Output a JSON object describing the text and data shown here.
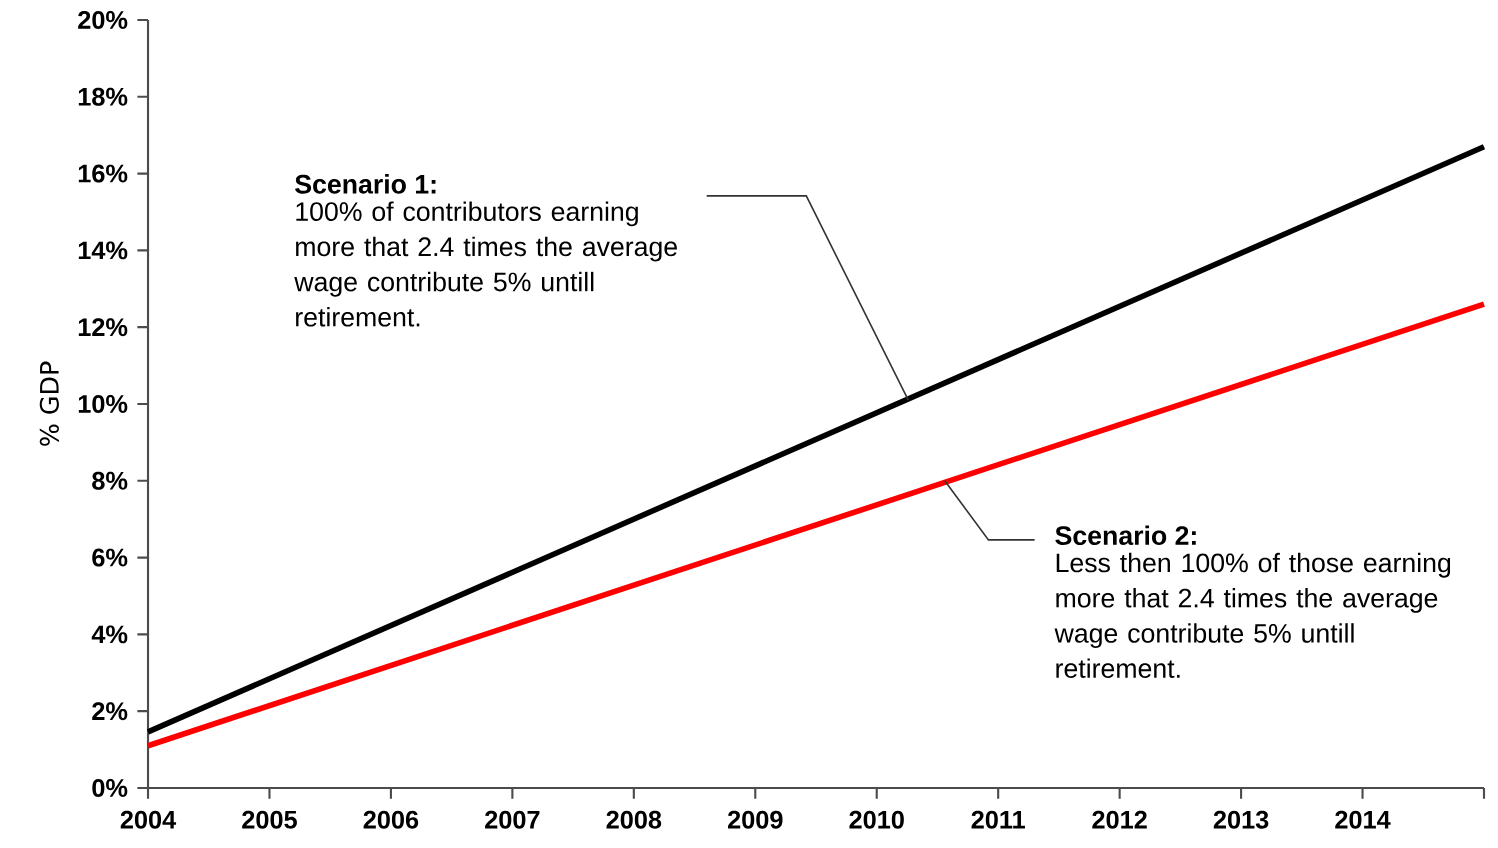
{
  "chart_data": {
    "type": "line",
    "ylabel": "% GDP",
    "x": [
      2004,
      2015
    ],
    "series": [
      {
        "color": "#000000",
        "values": [
          1.46,
          16.7
        ]
      },
      {
        "color": "#ff0000",
        "values": [
          1.1,
          12.6
        ]
      }
    ],
    "xlim": [
      2004,
      2015
    ],
    "xticks": [
      2004,
      2005,
      2006,
      2007,
      2008,
      2009,
      2010,
      2011,
      2012,
      2013,
      2014,
      {
        "value": 2015,
        "label": null
      }
    ],
    "ylim": [
      0,
      20
    ],
    "yticks": [
      {
        "value": 0,
        "label": "0%"
      },
      {
        "value": 2,
        "label": "2%"
      },
      {
        "value": 4,
        "label": "4%"
      },
      {
        "value": 6,
        "label": "6%"
      },
      {
        "value": 8,
        "label": "8%"
      },
      {
        "value": 10,
        "label": "10%"
      },
      {
        "value": 12,
        "label": "12%"
      },
      {
        "value": 14,
        "label": "14%"
      },
      {
        "value": 16,
        "label": "16%"
      },
      {
        "value": 18,
        "label": "18%"
      },
      {
        "value": 20,
        "label": "20%"
      }
    ],
    "grid": false,
    "marker": "none",
    "line_style": "solid",
    "annotations": [
      "Scenario 1:",
      {
        "text": "100% of contributors earning more that 2.4 times the average wage contribute 5% untill retirement.",
        "x": 2010.26,
        "y": 10.1
      },
      "Scenario 2:",
      {
        "text": "Less then 100% of those earning more that 2.4 times the average wage contribute 5% untill retirement.",
        "x": 2010.56,
        "y": 8.0
      }
    ]
  }
}
